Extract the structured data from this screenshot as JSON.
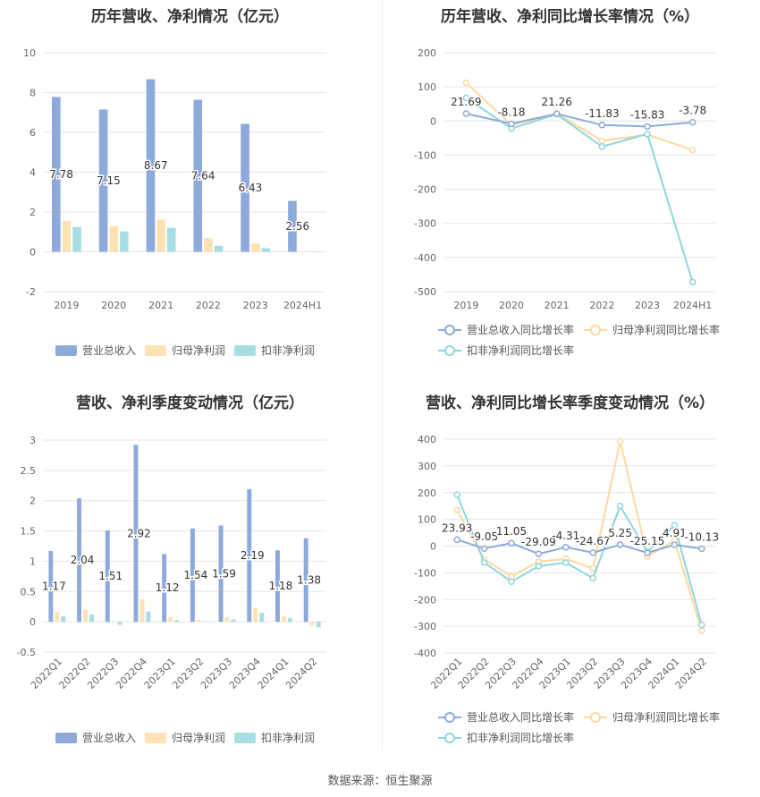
{
  "colors": {
    "revenue": "#8eaadb",
    "net_profit": "#fde2b4",
    "deducted_profit": "#a6dfe2",
    "revenue_line": "#8eaadb",
    "net_line": "#fdd8a0",
    "deducted_line": "#8fd6dc",
    "grid": "#e6e6e6",
    "axis_text": "#666666"
  },
  "source": "数据来源：恒生聚源",
  "chart_data": [
    {
      "type": "bar",
      "title": "历年营收、净利情况（亿元）",
      "categories": [
        "2019",
        "2020",
        "2021",
        "2022",
        "2023",
        "2024H1"
      ],
      "ylim": [
        -2,
        10
      ],
      "yticks": [
        "-2",
        "0",
        "2",
        "4",
        "6",
        "8",
        "10"
      ],
      "series": [
        {
          "name": "营业总收入",
          "values": [
            7.78,
            7.15,
            8.67,
            7.64,
            6.43,
            2.56
          ]
        },
        {
          "name": "归母净利润",
          "values": [
            1.55,
            1.3,
            1.62,
            0.7,
            0.42,
            0.02
          ]
        },
        {
          "name": "扣非净利润",
          "values": [
            1.25,
            1.02,
            1.2,
            0.3,
            0.18,
            0.01
          ]
        }
      ],
      "data_labels": [
        "7.78",
        "7.15",
        "8.67",
        "7.64",
        "6.43",
        "2.56"
      ]
    },
    {
      "type": "line",
      "title": "历年营收、净利同比增长率情况（%）",
      "categories": [
        "2019",
        "2020",
        "2021",
        "2022",
        "2023",
        "2024H1"
      ],
      "ylim": [
        -500,
        200
      ],
      "yticks": [
        "-500",
        "-400",
        "-300",
        "-200",
        "-100",
        "0",
        "100",
        "200"
      ],
      "series": [
        {
          "name": "营业总收入同比增长率",
          "values": [
            21.69,
            -8.18,
            21.26,
            -11.83,
            -15.83,
            -3.78
          ]
        },
        {
          "name": "归母净利润同比增长率",
          "values": [
            112,
            -12,
            22,
            -58,
            -40,
            -85
          ]
        },
        {
          "name": "扣非净利润同比增长率",
          "values": [
            68,
            -22,
            20,
            -75,
            -38,
            -472
          ]
        }
      ],
      "data_labels": [
        "21.69",
        "-8.18",
        "21.26",
        "-11.83",
        "-15.83",
        "-3.78"
      ]
    },
    {
      "type": "bar",
      "title": "营收、净利季度变动情况（亿元）",
      "categories": [
        "2022Q1",
        "2022Q2",
        "2022Q3",
        "2022Q4",
        "2023Q1",
        "2023Q2",
        "2023Q3",
        "2023Q4",
        "2024Q1",
        "2024Q2"
      ],
      "ylim": [
        -0.5,
        3
      ],
      "yticks": [
        "-0.5",
        "0",
        "0.5",
        "1",
        "1.5",
        "2",
        "2.5",
        "3"
      ],
      "series": [
        {
          "name": "营业总收入",
          "values": [
            1.17,
            2.04,
            1.51,
            2.92,
            1.12,
            1.54,
            1.59,
            2.19,
            1.18,
            1.38
          ]
        },
        {
          "name": "归母净利润",
          "values": [
            0.16,
            0.2,
            0.01,
            0.37,
            0.08,
            0.03,
            0.08,
            0.23,
            0.09,
            -0.06
          ]
        },
        {
          "name": "扣非净利润",
          "values": [
            0.09,
            0.12,
            -0.05,
            0.17,
            0.03,
            0.01,
            0.04,
            0.15,
            0.06,
            -0.09
          ]
        }
      ],
      "data_labels": [
        "1.17",
        "2.04",
        "1.51",
        "2.92",
        "1.12",
        "1.54",
        "1.59",
        "2.19",
        "1.18",
        "1.38"
      ]
    },
    {
      "type": "line",
      "title": "营收、净利同比增长率季度变动情况（%）",
      "categories": [
        "2022Q1",
        "2022Q2",
        "2022Q3",
        "2022Q4",
        "2023Q1",
        "2023Q2",
        "2023Q3",
        "2023Q4",
        "2024Q1",
        "2024Q2"
      ],
      "ylim": [
        -400,
        400
      ],
      "yticks": [
        "-400",
        "-300",
        "-200",
        "-100",
        "0",
        "100",
        "200",
        "300",
        "400"
      ],
      "series": [
        {
          "name": "营业总收入同比增长率",
          "values": [
            23.93,
            -9.05,
            11.05,
            -29.09,
            -4.31,
            -24.67,
            5.25,
            -25.15,
            4.91,
            -10.13
          ]
        },
        {
          "name": "归母净利润同比增长率",
          "values": [
            135,
            -50,
            -113,
            -58,
            -48,
            -83,
            392,
            -38,
            20,
            -317
          ]
        },
        {
          "name": "扣非净利润同比增长率",
          "values": [
            192,
            -62,
            -133,
            -75,
            -62,
            -120,
            150,
            -22,
            78,
            -295
          ]
        }
      ],
      "data_labels": [
        "23.93",
        "-9.05",
        "11.05",
        "-29.09",
        "-4.31",
        "-24.67",
        "5.25",
        "-25.15",
        "4.91",
        "-10.13"
      ]
    }
  ]
}
